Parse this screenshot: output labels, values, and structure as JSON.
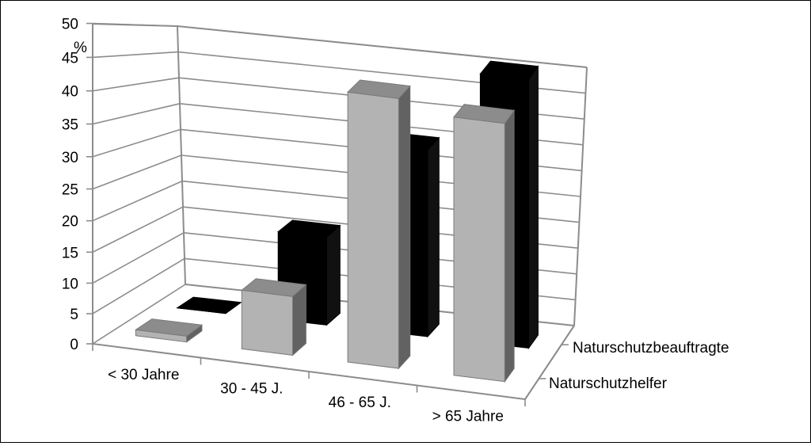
{
  "chart_data": {
    "type": "bar",
    "title": "",
    "subtitle": "",
    "xlabel": "",
    "ylabel": "%",
    "ylim": [
      0,
      50
    ],
    "y_ticks": [
      "0",
      "5",
      "10",
      "15",
      "20",
      "25",
      "30",
      "35",
      "40",
      "45",
      "50"
    ],
    "categories": [
      "< 30 Jahre",
      "30 - 45 J.",
      "46 - 65 J.",
      "> 65 Jahre"
    ],
    "series": [
      {
        "name": "Naturschutzhelfer",
        "values": [
          1,
          10,
          46,
          44
        ],
        "color": "#b3b3b3"
      },
      {
        "name": "Naturschutzbeauftragte",
        "values": [
          0,
          16,
          34,
          49
        ],
        "color": "#000000"
      }
    ],
    "style": "3d-column",
    "grid": true,
    "legend": "depth-axis-labels-right"
  }
}
